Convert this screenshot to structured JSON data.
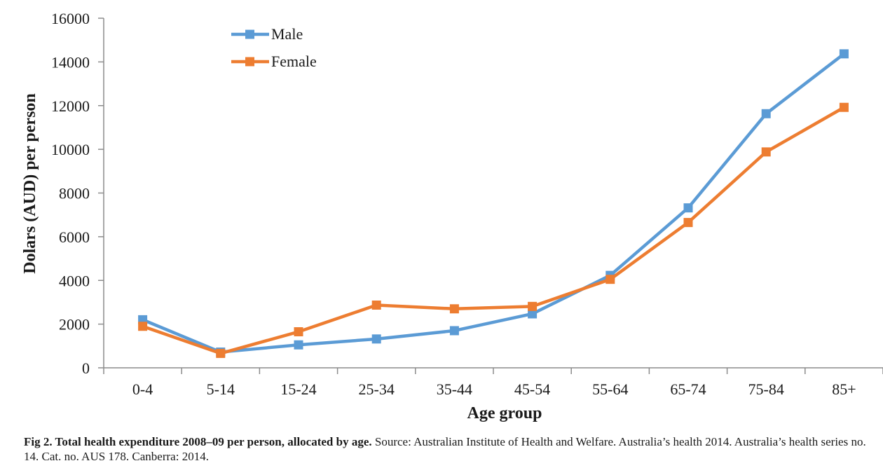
{
  "chart_data": {
    "type": "line",
    "categories": [
      "0-4",
      "5-14",
      "15-24",
      "25-34",
      "35-44",
      "45-54",
      "55-64",
      "65-74",
      "75-84",
      "85+"
    ],
    "series": [
      {
        "name": "Male",
        "color": "#5b9bd5",
        "values": [
          2200,
          720,
          1050,
          1320,
          1700,
          2470,
          4230,
          7320,
          11630,
          14370
        ]
      },
      {
        "name": "Female",
        "color": "#ed7d31",
        "values": [
          1900,
          660,
          1650,
          2870,
          2700,
          2810,
          4050,
          6650,
          9880,
          11920
        ]
      }
    ],
    "xlabel": "Age group",
    "ylabel": "Dolars (AUD) per person",
    "ylim": [
      0,
      16000
    ],
    "yticks": [
      0,
      2000,
      4000,
      6000,
      8000,
      10000,
      12000,
      14000,
      16000
    ],
    "grid": false,
    "legend": "top-left"
  },
  "caption": {
    "lead": "Fig 2.  Total health expenditure 2008–09 per person, allocated by age.",
    "text": " Source: Australian Institute of Health and Welfare. Australia’s health 2014. Australia’s health series no. 14. Cat. no. AUS 178. Canberra: 2014."
  }
}
